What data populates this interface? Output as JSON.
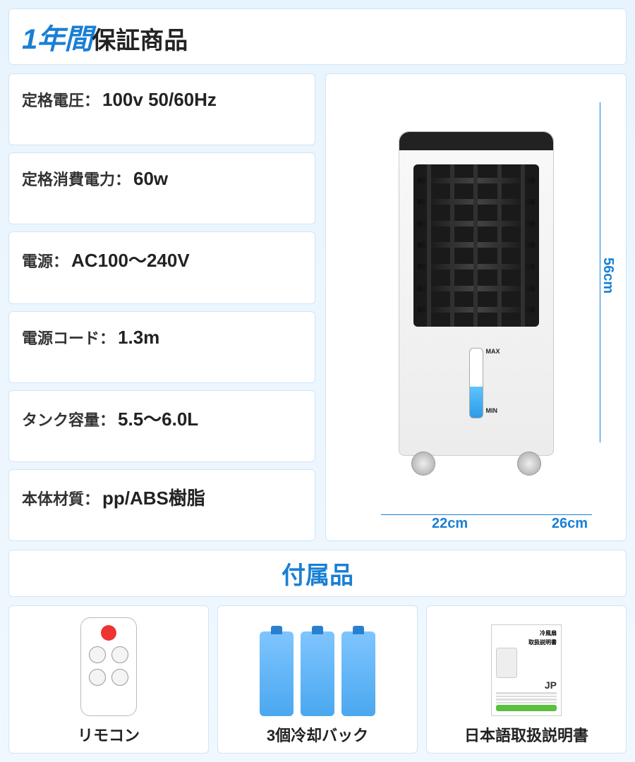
{
  "colors": {
    "accent_blue": "#1a7fd4",
    "bg_gradient_top": "#e8f4fd",
    "bg_gradient_bottom": "#f0f8ff",
    "card_bg": "#ffffff",
    "card_border": "#d0e5f5",
    "text_dark": "#222222"
  },
  "header": {
    "bold_part": "1年間",
    "rest_part": "保証商品"
  },
  "specs": [
    {
      "label": "定格電圧：",
      "value": "100v 50/60Hz"
    },
    {
      "label": "定格消費電力：",
      "value": "60w"
    },
    {
      "label": "電源：",
      "value": "AC100～240V"
    },
    {
      "label": "電源コード：",
      "value": "1.3m"
    },
    {
      "label": "タンク容量：",
      "value": "5.5～6.0L"
    },
    {
      "label": "本体材質：",
      "value": "pp/ABS樹脂"
    }
  ],
  "product": {
    "water_max_label": "MAX",
    "water_min_label": "MIN",
    "dimensions": {
      "height_cm": "56cm",
      "width_cm": "22cm",
      "depth_cm": "26cm"
    }
  },
  "accessories": {
    "section_title": "付属品",
    "items": [
      {
        "kind": "remote",
        "caption": "リモコン"
      },
      {
        "kind": "icepack",
        "count": 3,
        "caption": "3個冷却バック"
      },
      {
        "kind": "manual",
        "caption": "日本語取扱説明書",
        "manual_title": "取扱説明書",
        "manual_subtitle": "冷風扇",
        "manual_lang": "JP"
      }
    ]
  }
}
